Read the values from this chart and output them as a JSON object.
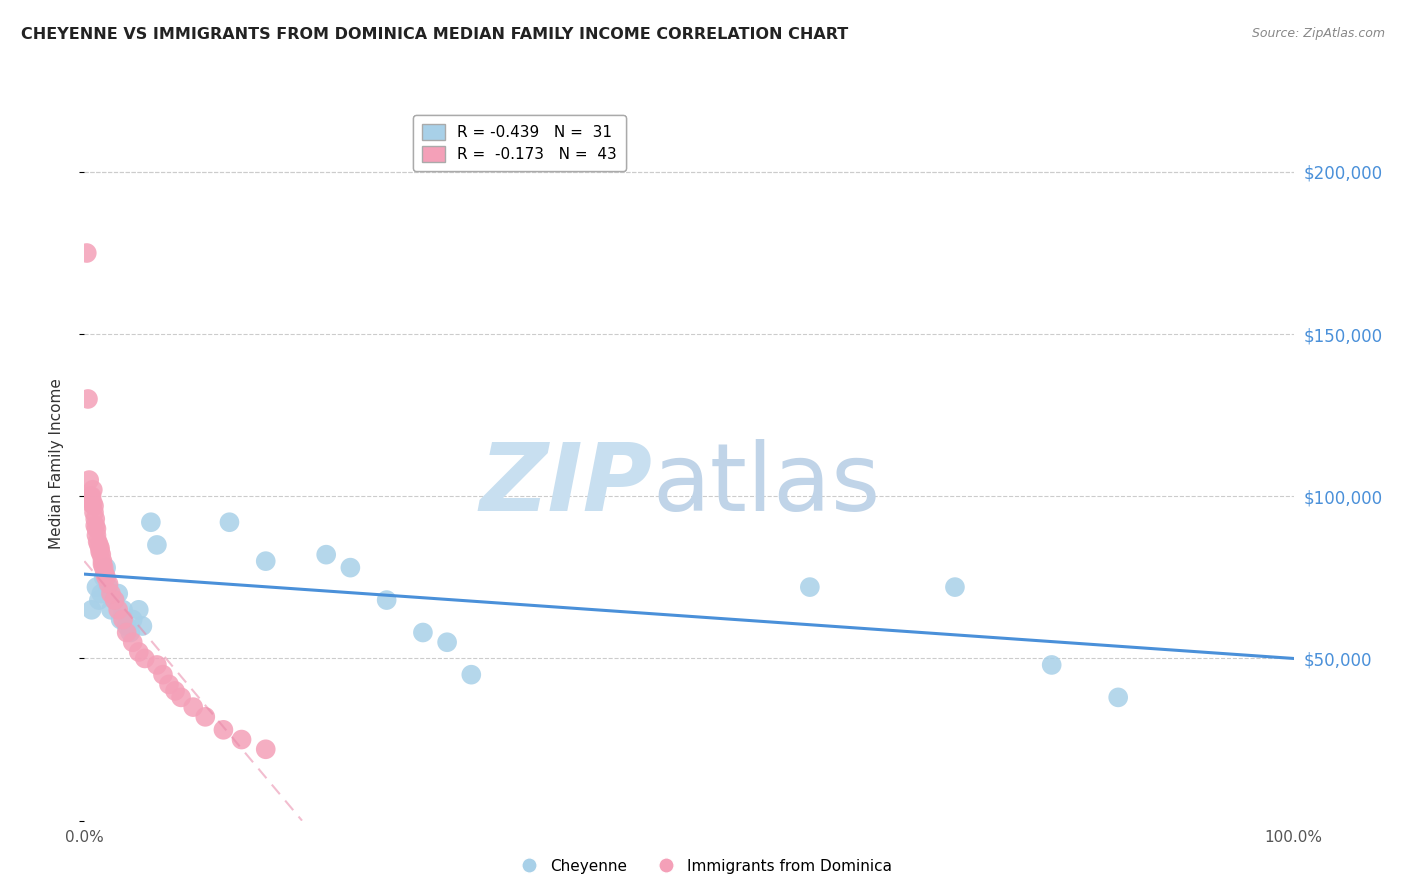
{
  "title": "CHEYENNE VS IMMIGRANTS FROM DOMINICA MEDIAN FAMILY INCOME CORRELATION CHART",
  "source": "Source: ZipAtlas.com",
  "ylabel": "Median Family Income",
  "xlim": [
    0,
    1.0
  ],
  "ylim": [
    0,
    220000
  ],
  "legend1_label": "R = -0.439   N =  31",
  "legend2_label": "R =  -0.173   N =  43",
  "legend_cheyenne": "Cheyenne",
  "legend_dominica": "Immigrants from Dominica",
  "color_blue": "#a8d0e8",
  "color_pink": "#f4a0b8",
  "color_line_blue": "#4a90d9",
  "color_line_pink": "#e888a8",
  "cheyenne_x": [
    0.006,
    0.01,
    0.012,
    0.014,
    0.016,
    0.018,
    0.02,
    0.022,
    0.025,
    0.028,
    0.03,
    0.032,
    0.035,
    0.038,
    0.04,
    0.045,
    0.048,
    0.055,
    0.06,
    0.12,
    0.15,
    0.2,
    0.22,
    0.25,
    0.28,
    0.3,
    0.32,
    0.6,
    0.72,
    0.8,
    0.855
  ],
  "cheyenne_y": [
    65000,
    72000,
    68000,
    70000,
    75000,
    78000,
    72000,
    65000,
    68000,
    70000,
    62000,
    65000,
    60000,
    58000,
    62000,
    65000,
    60000,
    92000,
    85000,
    92000,
    80000,
    82000,
    78000,
    68000,
    58000,
    55000,
    45000,
    72000,
    72000,
    48000,
    38000
  ],
  "dominica_x": [
    0.002,
    0.003,
    0.004,
    0.005,
    0.005,
    0.006,
    0.007,
    0.007,
    0.008,
    0.008,
    0.009,
    0.009,
    0.01,
    0.01,
    0.011,
    0.012,
    0.013,
    0.013,
    0.014,
    0.015,
    0.015,
    0.016,
    0.017,
    0.018,
    0.02,
    0.022,
    0.025,
    0.028,
    0.032,
    0.035,
    0.04,
    0.045,
    0.05,
    0.06,
    0.065,
    0.07,
    0.075,
    0.08,
    0.09,
    0.1,
    0.115,
    0.13,
    0.15
  ],
  "dominica_y": [
    175000,
    130000,
    105000,
    100000,
    98000,
    100000,
    102000,
    98000,
    97000,
    95000,
    93000,
    91000,
    90000,
    88000,
    86000,
    85000,
    84000,
    83000,
    82000,
    80000,
    79000,
    78000,
    76000,
    75000,
    73000,
    70000,
    68000,
    65000,
    62000,
    58000,
    55000,
    52000,
    50000,
    48000,
    45000,
    42000,
    40000,
    38000,
    35000,
    32000,
    28000,
    25000,
    22000
  ],
  "blue_line_x": [
    0.0,
    1.0
  ],
  "blue_line_y": [
    76000,
    50000
  ],
  "pink_line_x": [
    0.0,
    0.18
  ],
  "pink_line_y": [
    80000,
    0
  ]
}
